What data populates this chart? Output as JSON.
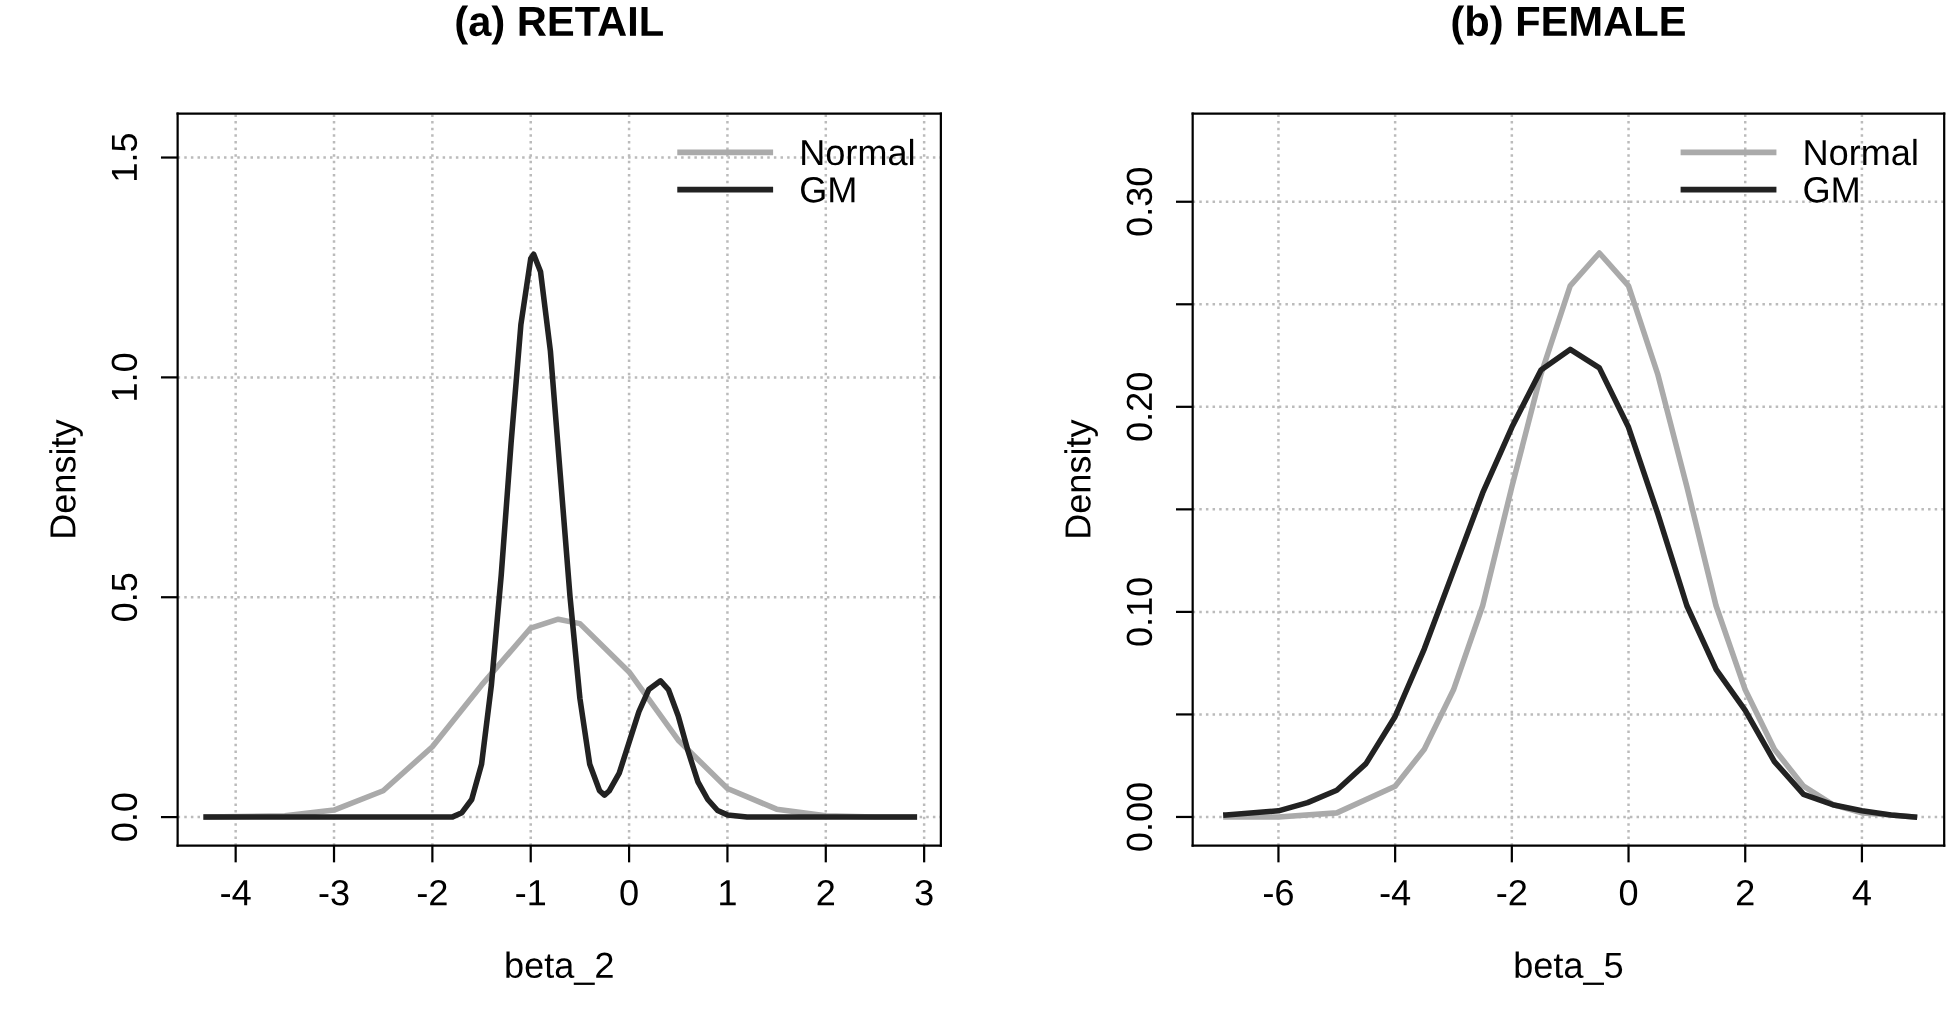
{
  "chart_data": [
    {
      "type": "line",
      "title": "(a) RETAIL",
      "xlabel": "beta_2",
      "ylabel": "Density",
      "xlim": [
        -4.59,
        3.17
      ],
      "ylim": [
        -0.065,
        1.6
      ],
      "xticks": [
        -4,
        -3,
        -2,
        -1,
        0,
        1,
        2,
        3
      ],
      "yticks": [
        {
          "value": 0,
          "label": "0.0"
        },
        0.5,
        {
          "value": 1,
          "label": "1.0"
        },
        1.5
      ],
      "grid": true,
      "legend": "top right",
      "line_style": "solid",
      "marker": "none",
      "series": [
        {
          "name": "Normal",
          "color": "#aaaaaa",
          "x": [
            -4.3,
            -3.5,
            -3.0,
            -2.5,
            -2.0,
            -1.5,
            -1.0,
            -0.72,
            -0.5,
            0.0,
            0.5,
            1.0,
            1.5,
            2.0,
            2.5,
            2.9
          ],
          "values": [
            0,
            0.003,
            0.016,
            0.06,
            0.16,
            0.3,
            0.43,
            0.45,
            0.44,
            0.33,
            0.175,
            0.065,
            0.018,
            0.003,
            0,
            0
          ]
        },
        {
          "name": "GM",
          "color": "#222222",
          "x": [
            -4.3,
            -1.8,
            -1.7,
            -1.6,
            -1.5,
            -1.4,
            -1.3,
            -1.2,
            -1.1,
            -1.0,
            -0.97,
            -0.9,
            -0.8,
            -0.7,
            -0.6,
            -0.5,
            -0.4,
            -0.3,
            -0.25,
            -0.2,
            -0.1,
            0.0,
            0.1,
            0.2,
            0.32,
            0.4,
            0.5,
            0.6,
            0.7,
            0.8,
            0.9,
            1.0,
            1.2,
            2.9
          ],
          "values": [
            0,
            0,
            0.01,
            0.04,
            0.12,
            0.3,
            0.55,
            0.85,
            1.12,
            1.27,
            1.28,
            1.24,
            1.06,
            0.78,
            0.5,
            0.27,
            0.12,
            0.06,
            0.05,
            0.06,
            0.1,
            0.17,
            0.24,
            0.29,
            0.31,
            0.29,
            0.23,
            0.15,
            0.08,
            0.04,
            0.015,
            0.005,
            0,
            0
          ]
        }
      ]
    },
    {
      "type": "line",
      "title": "(b) FEMALE",
      "xlabel": "beta_5",
      "ylabel": "Density",
      "xlim": [
        -7.47,
        5.41
      ],
      "ylim": [
        -0.014,
        0.343
      ],
      "xticks": [
        -6,
        -4,
        -2,
        0,
        2,
        4
      ],
      "yticks": [
        {
          "value": 0,
          "label": "0.00"
        },
        {
          "value": 0.05,
          "label": null
        },
        {
          "value": 0.1,
          "label": "0.10"
        },
        {
          "value": 0.15,
          "label": null
        },
        {
          "value": 0.2,
          "label": "0.20"
        },
        {
          "value": 0.25,
          "label": null
        },
        {
          "value": 0.3,
          "label": "0.30"
        }
      ],
      "grid": true,
      "legend": "top right",
      "line_style": "solid",
      "marker": "none",
      "series": [
        {
          "name": "Normal",
          "color": "#aaaaaa",
          "x": [
            -6.9,
            -6,
            -5,
            -4,
            -3.5,
            -3,
            -2.5,
            -2,
            -1.5,
            -1,
            -0.5,
            0,
            0.5,
            1,
            1.5,
            2,
            2.5,
            3,
            3.5,
            4,
            4.5,
            4.9
          ],
          "values": [
            0,
            0,
            0.002,
            0.015,
            0.033,
            0.062,
            0.103,
            0.161,
            0.216,
            0.259,
            0.275,
            0.259,
            0.216,
            0.161,
            0.103,
            0.062,
            0.033,
            0.015,
            0.006,
            0.002,
            0.001,
            0
          ]
        },
        {
          "name": "GM",
          "color": "#222222",
          "x": [
            -6.9,
            -6,
            -5.5,
            -5,
            -4.5,
            -4,
            -3.5,
            -3,
            -2.5,
            -2,
            -1.5,
            -1,
            -0.5,
            0,
            0.5,
            1,
            1.5,
            2,
            2.5,
            3,
            3.5,
            4,
            4.5,
            4.9
          ],
          "values": [
            0.001,
            0.003,
            0.007,
            0.013,
            0.026,
            0.049,
            0.082,
            0.12,
            0.158,
            0.19,
            0.218,
            0.228,
            0.219,
            0.19,
            0.148,
            0.103,
            0.072,
            0.052,
            0.027,
            0.011,
            0.006,
            0.003,
            0.001,
            0
          ]
        }
      ]
    }
  ]
}
